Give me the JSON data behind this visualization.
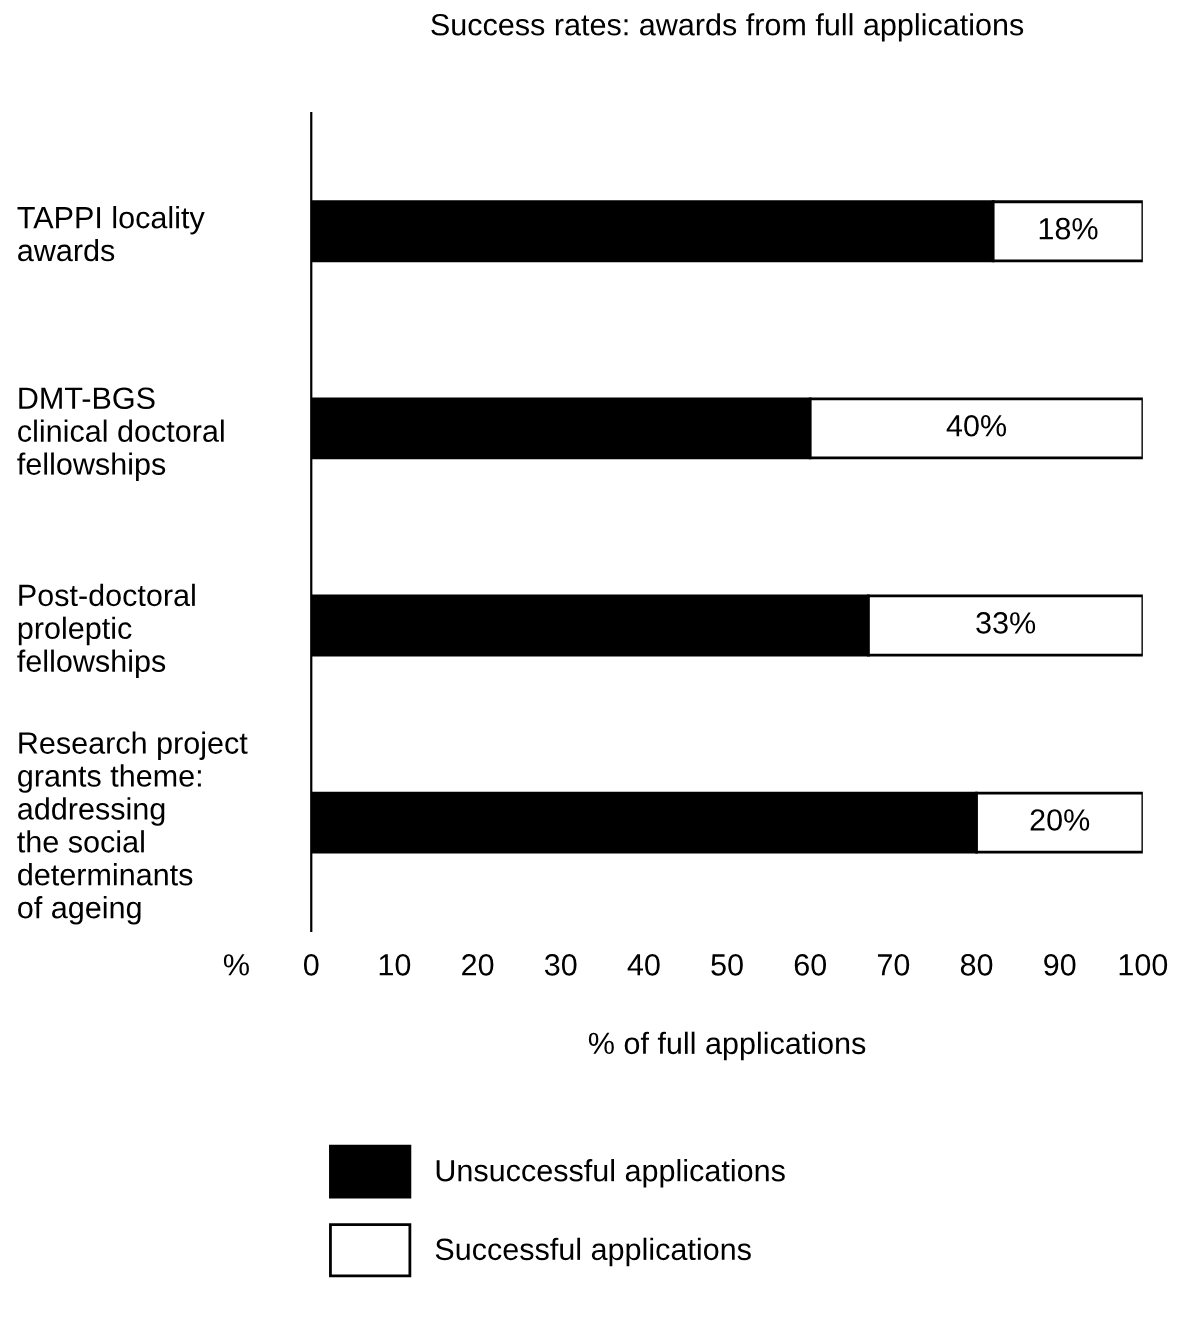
{
  "chart_data": {
    "type": "bar",
    "orientation": "horizontal",
    "stacked": true,
    "title": "Success rates: awards from full applications",
    "xlabel": "% of full applications",
    "categories": [
      "TAPPI locality\nawards",
      "DMT-BGS\nclinical doctoral\nfellowships",
      "Post-doctoral\nproleptic\nfellowships",
      "Research project\ngrants theme:\naddressing\nthe social\ndeterminants\nof ageing"
    ],
    "series": [
      {
        "name": "Unsuccessful applications",
        "color": "#000000",
        "values": [
          82,
          60,
          67,
          80
        ]
      },
      {
        "name": "Successful applications",
        "color": "#ffffff",
        "values": [
          18,
          40,
          33,
          20
        ],
        "value_labels": [
          "18%",
          "40%",
          "33%",
          "20%"
        ]
      }
    ],
    "xlim": [
      0,
      100
    ],
    "xticks": [
      0,
      10,
      20,
      30,
      40,
      50,
      60,
      70,
      80,
      90,
      100
    ],
    "grid": false,
    "legend": "bottom",
    "annotations": [
      "%"
    ]
  }
}
